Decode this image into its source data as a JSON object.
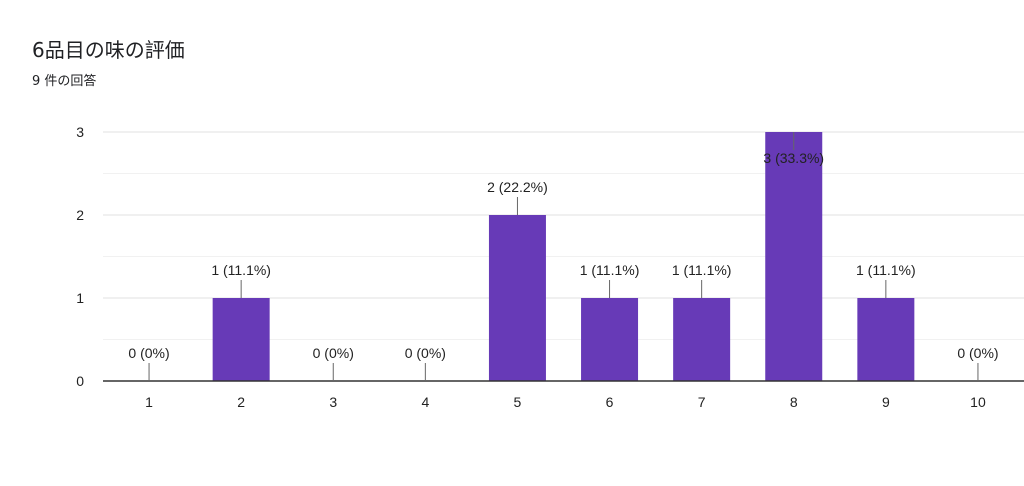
{
  "header": {
    "title": "6品目の味の評価",
    "subtitle": "9 件の回答"
  },
  "chart_data": {
    "type": "bar",
    "categories": [
      "1",
      "2",
      "3",
      "4",
      "5",
      "6",
      "7",
      "8",
      "9",
      "10"
    ],
    "values": [
      0,
      1,
      0,
      0,
      2,
      1,
      1,
      3,
      1,
      0
    ],
    "data_labels": [
      "0 (0%)",
      "1 (11.1%)",
      "0 (0%)",
      "0 (0%)",
      "2 (22.2%)",
      "1 (11.1%)",
      "1 (11.1%)",
      "3 (33.3%)",
      "1 (11.1%)",
      "0 (0%)"
    ],
    "yticks": [
      "0",
      "1",
      "2",
      "3"
    ],
    "ylim": [
      0,
      3
    ],
    "grid": true,
    "bar_color": "#673ab7"
  }
}
